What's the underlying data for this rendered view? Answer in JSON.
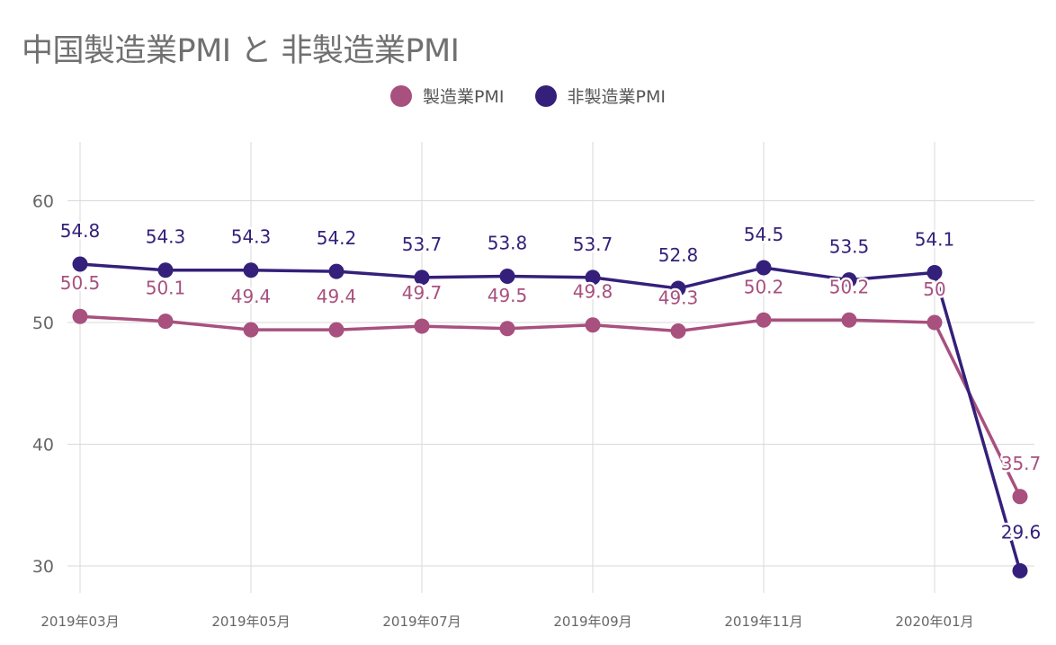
{
  "chart_data": {
    "type": "line",
    "title": "中国製造業PMI と 非製造業PMI",
    "xlabel": "",
    "ylabel": "",
    "ylim": [
      28,
      65
    ],
    "yticks": [
      30,
      40,
      50,
      60
    ],
    "grid": true,
    "legend_position": "top",
    "categories": [
      "2019年03月",
      "2019年04月",
      "2019年05月",
      "2019年06月",
      "2019年07月",
      "2019年08月",
      "2019年09月",
      "2019年10月",
      "2019年11月",
      "2019年12月",
      "2020年01月",
      "2020年02月"
    ],
    "xtick_labels": [
      "2019年03月",
      "2019年05月",
      "2019年07月",
      "2019年09月",
      "2019年11月",
      "2020年01月"
    ],
    "series": [
      {
        "name": "製造業PMI",
        "color": "#a8507e",
        "values": [
          50.5,
          50.1,
          49.4,
          49.4,
          49.7,
          49.5,
          49.8,
          49.3,
          50.2,
          50.2,
          50,
          35.7
        ],
        "labels": [
          "50.5",
          "50.1",
          "49.4",
          "49.4",
          "49.7",
          "49.5",
          "49.8",
          "49.3",
          "50.2",
          "50.2",
          "50",
          "35.7"
        ]
      },
      {
        "name": "非製造業PMI",
        "color": "#34207a",
        "values": [
          54.8,
          54.3,
          54.3,
          54.2,
          53.7,
          53.8,
          53.7,
          52.8,
          54.5,
          53.5,
          54.1,
          29.6
        ],
        "labels": [
          "54.8",
          "54.3",
          "54.3",
          "54.2",
          "53.7",
          "53.8",
          "53.7",
          "52.8",
          "54.5",
          "53.5",
          "54.1",
          "29.6"
        ]
      }
    ]
  }
}
